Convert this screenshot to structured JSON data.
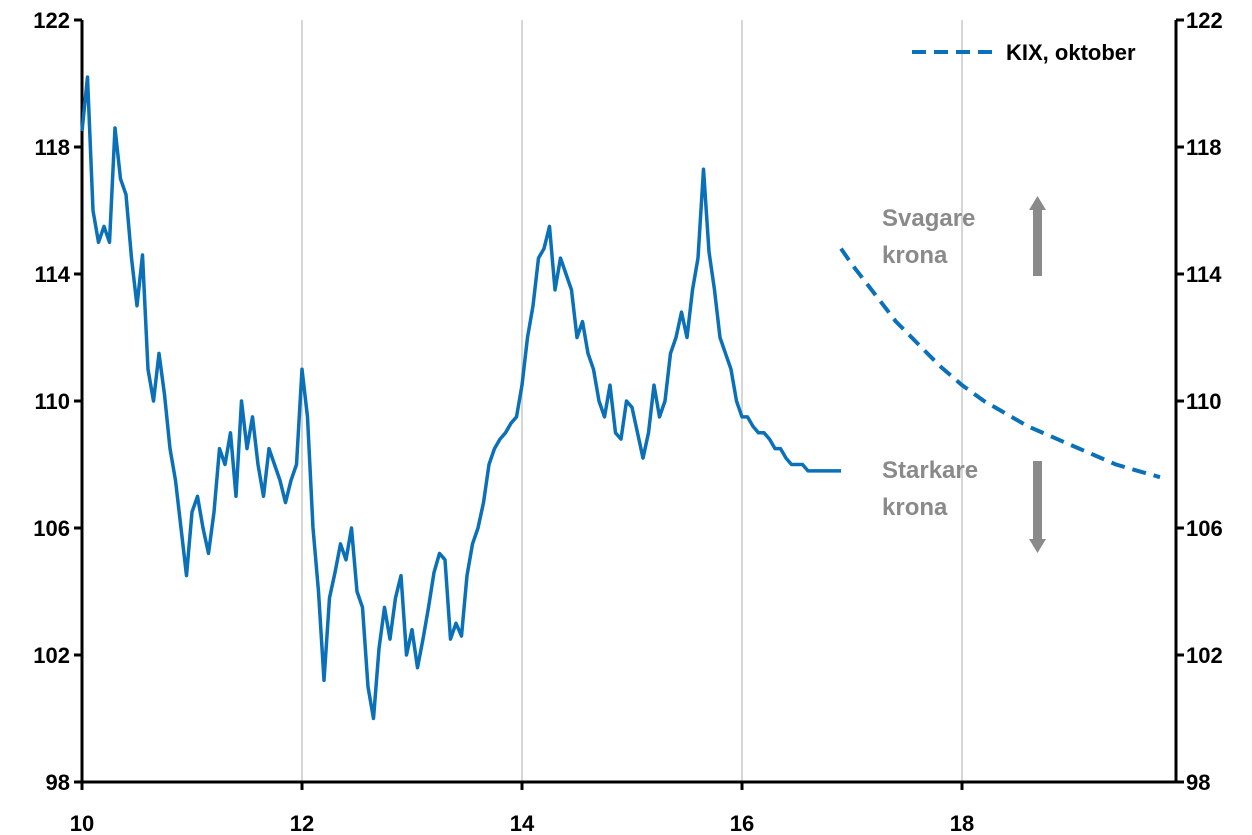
{
  "chart_data": {
    "type": "line",
    "title": "",
    "xlabel": "",
    "ylabel": "",
    "xlim": [
      10,
      19.8
    ],
    "ylim": [
      98,
      122
    ],
    "x_ticks": [
      "10",
      "12",
      "14",
      "16",
      "18"
    ],
    "y_ticks": [
      "98",
      "102",
      "106",
      "110",
      "114",
      "118",
      "122"
    ],
    "grid": "vertical",
    "colors": {
      "series": "#0a70b8",
      "axis": "#000000",
      "grid": "#c8c8c8",
      "annotation": "#8a8a8a"
    },
    "series": [
      {
        "name": "",
        "style": "solid",
        "x": [
          10.0,
          10.05,
          10.1,
          10.15,
          10.2,
          10.25,
          10.3,
          10.35,
          10.4,
          10.45,
          10.5,
          10.55,
          10.6,
          10.65,
          10.7,
          10.75,
          10.8,
          10.85,
          10.9,
          10.95,
          11.0,
          11.05,
          11.1,
          11.15,
          11.2,
          11.25,
          11.3,
          11.35,
          11.4,
          11.45,
          11.5,
          11.55,
          11.6,
          11.65,
          11.7,
          11.75,
          11.8,
          11.85,
          11.9,
          11.95,
          12.0,
          12.05,
          12.1,
          12.15,
          12.2,
          12.25,
          12.3,
          12.35,
          12.4,
          12.45,
          12.5,
          12.55,
          12.6,
          12.65,
          12.7,
          12.75,
          12.8,
          12.85,
          12.9,
          12.95,
          13.0,
          13.05,
          13.1,
          13.15,
          13.2,
          13.25,
          13.3,
          13.35,
          13.4,
          13.45,
          13.5,
          13.55,
          13.6,
          13.65,
          13.7,
          13.75,
          13.8,
          13.85,
          13.9,
          13.95,
          14.0,
          14.05,
          14.1,
          14.15,
          14.2,
          14.25,
          14.3,
          14.35,
          14.4,
          14.45,
          14.5,
          14.55,
          14.6,
          14.65,
          14.7,
          14.75,
          14.8,
          14.85,
          14.9,
          14.95,
          15.0,
          15.05,
          15.1,
          15.15,
          15.2,
          15.25,
          15.3,
          15.35,
          15.4,
          15.45,
          15.5,
          15.55,
          15.6,
          15.65,
          15.7,
          15.75,
          15.8,
          15.85,
          15.9,
          15.95,
          16.0,
          16.05,
          16.1,
          16.15,
          16.2,
          16.25,
          16.3,
          16.35,
          16.4,
          16.45,
          16.5,
          16.55,
          16.6,
          16.65,
          16.7,
          16.75,
          16.8,
          16.85,
          16.9
        ],
        "values": [
          118.5,
          120.2,
          116.0,
          115.0,
          115.5,
          115.0,
          118.6,
          117.0,
          116.5,
          114.5,
          113.0,
          114.6,
          111.0,
          110.0,
          111.5,
          110.2,
          108.5,
          107.5,
          106.0,
          104.5,
          106.5,
          107.0,
          106.0,
          105.2,
          106.5,
          108.5,
          108.0,
          109.0,
          107.0,
          110.0,
          108.5,
          109.5,
          108.0,
          107.0,
          108.5,
          108.0,
          107.5,
          106.8,
          107.5,
          108.0,
          111.0,
          109.5,
          106.0,
          104.0,
          101.2,
          103.8,
          104.6,
          105.5,
          105.0,
          106.0,
          104.0,
          103.5,
          101.0,
          100.0,
          102.2,
          103.5,
          102.5,
          103.8,
          104.5,
          102.0,
          102.8,
          101.6,
          102.5,
          103.5,
          104.6,
          105.2,
          105.0,
          102.5,
          103.0,
          102.6,
          104.5,
          105.5,
          106.0,
          106.8,
          108.0,
          108.5,
          108.8,
          109.0,
          109.3,
          109.5,
          110.5,
          112.0,
          113.0,
          114.5,
          114.8,
          115.5,
          113.5,
          114.5,
          114.0,
          113.5,
          112.0,
          112.5,
          111.5,
          111.0,
          110.0,
          109.5,
          110.5,
          109.0,
          108.8,
          110.0,
          109.8,
          109.0,
          108.2,
          109.0,
          110.5,
          109.5,
          110.0,
          111.5,
          112.0,
          112.8,
          112.0,
          113.5,
          114.5,
          117.3,
          114.7,
          113.5,
          112.0,
          111.5,
          111.0,
          110.0,
          109.5,
          109.5,
          109.2,
          109.0,
          109.0,
          108.8,
          108.5,
          108.5,
          108.2,
          108.0,
          108.0,
          108.0,
          107.8,
          107.8,
          107.8,
          107.8,
          107.8,
          107.8,
          107.8
        ]
      },
      {
        "name": "KIX, oktober",
        "style": "dashed",
        "x": [
          16.9,
          17.0,
          17.2,
          17.4,
          17.6,
          17.8,
          18.0,
          18.2,
          18.4,
          18.6,
          18.8,
          19.0,
          19.2,
          19.4,
          19.6,
          19.8
        ],
        "values": [
          114.8,
          114.3,
          113.4,
          112.5,
          111.8,
          111.1,
          110.5,
          110.0,
          109.6,
          109.2,
          108.9,
          108.6,
          108.3,
          108.0,
          107.8,
          107.6
        ]
      }
    ],
    "annotations": [
      {
        "text_line1": "Svagare",
        "text_line2": "krona",
        "arrow": "up"
      },
      {
        "text_line1": "Starkare",
        "text_line2": "krona",
        "arrow": "down"
      }
    ],
    "legend": {
      "position": "top-right",
      "label": "KIX, oktober"
    }
  }
}
